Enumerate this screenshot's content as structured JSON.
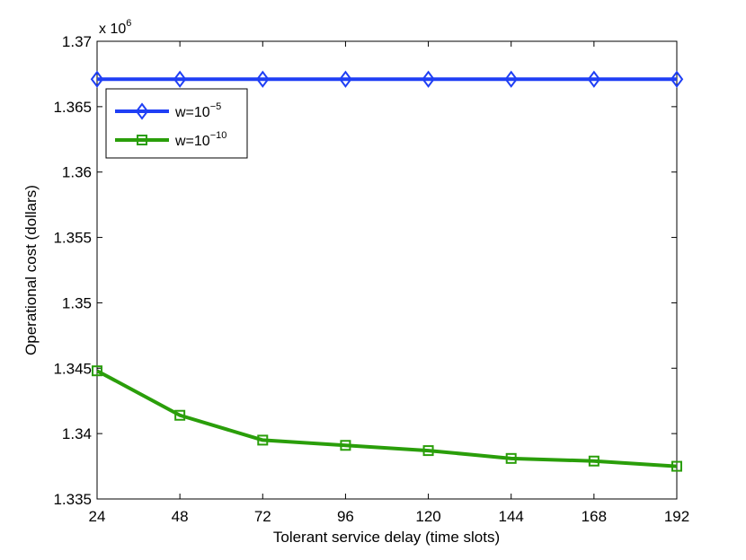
{
  "chart_data": {
    "type": "line",
    "xlabel": "Tolerant service delay (time slots)",
    "ylabel": "Operational cost (dollars)",
    "y_multiplier_label": "x 10",
    "y_multiplier_exponent": "6",
    "x": [
      24,
      48,
      72,
      96,
      120,
      144,
      168,
      192
    ],
    "xlim": [
      24,
      192
    ],
    "ylim": [
      1.335,
      1.37
    ],
    "x_ticks": [
      24,
      48,
      72,
      96,
      120,
      144,
      168,
      192
    ],
    "y_ticks": [
      1.335,
      1.34,
      1.345,
      1.35,
      1.355,
      1.36,
      1.365,
      1.37
    ],
    "y_tick_labels": [
      "1.335",
      "1.34",
      "1.345",
      "1.35",
      "1.355",
      "1.36",
      "1.365",
      "1.37"
    ],
    "grid": false,
    "legend_position": "top-left",
    "series": [
      {
        "name": "w=10",
        "exponent": "−5",
        "color": "#1f3ff5",
        "marker": "diamond",
        "values": [
          1.3671,
          1.3671,
          1.3671,
          1.3671,
          1.3671,
          1.3671,
          1.3671,
          1.3671
        ]
      },
      {
        "name": "w=10",
        "exponent": "−10",
        "color": "#2a9e0a",
        "marker": "square",
        "values": [
          1.3448,
          1.3414,
          1.3395,
          1.3391,
          1.3387,
          1.3381,
          1.3379,
          1.3375
        ]
      }
    ]
  }
}
